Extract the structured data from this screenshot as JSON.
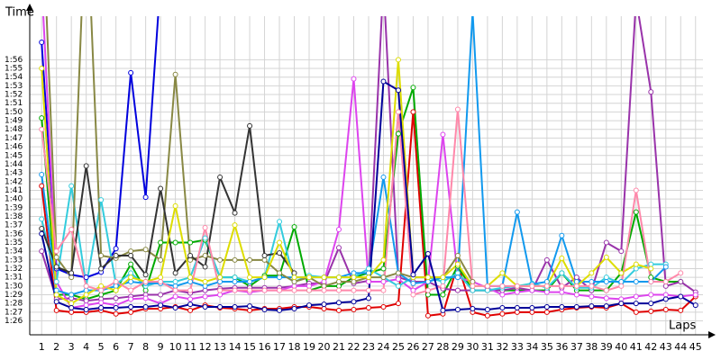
{
  "chart_data": {
    "type": "line",
    "y_label": "Time",
    "x_label": "Laps",
    "grid": true,
    "x": [
      1,
      2,
      3,
      4,
      5,
      6,
      7,
      8,
      9,
      10,
      11,
      12,
      13,
      14,
      15,
      16,
      17,
      18,
      19,
      20,
      21,
      22,
      23,
      24,
      25,
      26,
      27,
      28,
      29,
      30,
      31,
      32,
      33,
      34,
      35,
      36,
      37,
      38,
      39,
      40,
      41,
      42,
      43,
      44,
      45
    ],
    "xlim": [
      0.2,
      45.5
    ],
    "xticks": [
      1,
      2,
      3,
      4,
      5,
      6,
      7,
      8,
      9,
      10,
      11,
      12,
      13,
      14,
      15,
      16,
      17,
      18,
      19,
      20,
      21,
      22,
      23,
      24,
      25,
      26,
      27,
      28,
      29,
      30,
      31,
      32,
      33,
      34,
      35,
      36,
      37,
      38,
      39,
      40,
      41,
      42,
      43,
      44,
      45
    ],
    "ylim": [
      84.4,
      121
    ],
    "yticks": [
      {
        "value": 86,
        "label": "1:26"
      },
      {
        "value": 87,
        "label": "1:27"
      },
      {
        "value": 88,
        "label": "1:28"
      },
      {
        "value": 89,
        "label": "1:29"
      },
      {
        "value": 90,
        "label": "1:30"
      },
      {
        "value": 91,
        "label": "1:31"
      },
      {
        "value": 92,
        "label": "1:32"
      },
      {
        "value": 93,
        "label": "1:33"
      },
      {
        "value": 94,
        "label": "1:34"
      },
      {
        "value": 95,
        "label": "1:35"
      },
      {
        "value": 96,
        "label": "1:36"
      },
      {
        "value": 97,
        "label": "1:37"
      },
      {
        "value": 98,
        "label": "1:38"
      },
      {
        "value": 99,
        "label": "1:39"
      },
      {
        "value": 100,
        "label": "1:40"
      },
      {
        "value": 101,
        "label": "1:41"
      },
      {
        "value": 102,
        "label": "1:42"
      },
      {
        "value": 103,
        "label": "1:43"
      },
      {
        "value": 104,
        "label": "1:44"
      },
      {
        "value": 105,
        "label": "1:45"
      },
      {
        "value": 106,
        "label": "1:46"
      },
      {
        "value": 107,
        "label": "1:47"
      },
      {
        "value": 108,
        "label": "1:48"
      },
      {
        "value": 109,
        "label": "1:49"
      },
      {
        "value": 110,
        "label": "1:50"
      },
      {
        "value": 111,
        "label": "1:51"
      },
      {
        "value": 112,
        "label": "1:52"
      },
      {
        "value": 113,
        "label": "1:53"
      },
      {
        "value": 114,
        "label": "1:54"
      },
      {
        "value": 115,
        "label": "1:55"
      },
      {
        "value": 116,
        "label": "1:56"
      }
    ],
    "series": [
      {
        "color": "#e00000",
        "values": [
          101.5,
          87.2,
          87,
          87,
          87.2,
          86.8,
          87,
          87.4,
          87.4,
          87.6,
          87.2,
          87.8,
          87.5,
          87.4,
          87.2,
          87.4,
          87.4,
          87.6,
          87.6,
          87.4,
          87.2,
          87.3,
          87.5,
          87.6,
          88,
          110,
          86.6,
          86.8,
          92.5,
          87,
          86.6,
          86.8,
          87,
          87,
          87,
          87.3,
          87.5,
          87.6,
          87.5,
          88,
          87,
          87.1,
          87.3,
          87.2,
          88.8
        ]
      },
      {
        "color": "#0000dd",
        "values": [
          118,
          92,
          91.3,
          91,
          91.6,
          94.3,
          114.5,
          100.2,
          125,
          null,
          null,
          null,
          null,
          null,
          null,
          null,
          null,
          null,
          null,
          null,
          null,
          null,
          null,
          null,
          null,
          null,
          null,
          null,
          null,
          null,
          null,
          null,
          null,
          null,
          null,
          null,
          null,
          null,
          null,
          null,
          null,
          null,
          null,
          null,
          null
        ]
      },
      {
        "color": "#00aa00",
        "values": [
          109.3,
          89,
          89,
          88.5,
          89,
          89.5,
          92.5,
          89.5,
          95,
          95,
          95,
          95.3,
          91,
          91,
          90,
          91.2,
          91.2,
          96.8,
          89.5,
          90,
          90,
          91,
          91.5,
          92,
          107.5,
          112.8,
          89,
          89,
          92.3,
          89.5,
          89.5,
          89.5,
          89.5,
          89.5,
          89.5,
          91.5,
          89.5,
          89.5,
          89.5,
          91.5,
          98.5,
          91,
          90.5,
          90.5,
          null
        ]
      },
      {
        "color": "#9933aa",
        "values": [
          94,
          88.5,
          88.6,
          88.3,
          88.5,
          88.6,
          88.8,
          89,
          89,
          89.5,
          89.2,
          89.5,
          89.7,
          89.8,
          89.8,
          89.8,
          89.8,
          90,
          90.3,
          90.3,
          94.4,
          90.3,
          90.6,
          125,
          91,
          90.5,
          90.5,
          89.7,
          89.5,
          89.5,
          89.5,
          89.5,
          89.8,
          89.5,
          93,
          89.8,
          91,
          89.5,
          95,
          94,
          123,
          112.3,
          90,
          90.5,
          89.3
        ]
      },
      {
        "color": "#dd44ee",
        "values": [
          125,
          90.5,
          87.5,
          87.8,
          88.1,
          87.8,
          88.5,
          88.6,
          88,
          88.8,
          88.5,
          88.8,
          89,
          89.5,
          89.3,
          89.5,
          89.5,
          90,
          90,
          90.5,
          96.5,
          113.8,
          90.5,
          90.5,
          90.8,
          89.5,
          90.5,
          107.4,
          91,
          90.5,
          89.8,
          89,
          89.3,
          89.5,
          89.3,
          89.3,
          89,
          88.8,
          88.6,
          88.5,
          88.8,
          89,
          89,
          88.8,
          89
        ]
      },
      {
        "color": "#33ccdd",
        "values": [
          97.7,
          90.5,
          101.5,
          90,
          99.9,
          90.2,
          91.5,
          90,
          90.5,
          90.5,
          91,
          95.5,
          91,
          91,
          90.5,
          91,
          97.4,
          90.5,
          91.2,
          91,
          91,
          91,
          92,
          91,
          90,
          91,
          91,
          90.5,
          91.5,
          89.5,
          89.5,
          89.8,
          90,
          90.3,
          89.8,
          91.5,
          89.8,
          89.8,
          91,
          90.3,
          92,
          92.5,
          92.5,
          null,
          null
        ]
      },
      {
        "color": "#1199ee",
        "values": [
          102.8,
          89.5,
          89,
          89.5,
          89.5,
          90,
          90.5,
          90.3,
          90.3,
          90,
          90.5,
          90,
          90.5,
          90.5,
          90.5,
          91,
          91,
          91,
          91,
          91,
          91,
          91.5,
          91.5,
          102.5,
          91.5,
          90.3,
          90.5,
          91,
          91,
          121.5,
          90,
          90,
          98.5,
          90.2,
          90.5,
          95.8,
          90.5,
          90.5,
          90.5,
          90.5,
          90.5,
          90.5,
          92.2,
          null,
          null
        ]
      },
      {
        "color": "#888844",
        "values": [
          135,
          93.3,
          91,
          135,
          93.5,
          93.2,
          94,
          94.2,
          93,
          114.3,
          93,
          93.5,
          93,
          93,
          93,
          93,
          91.5,
          90.5,
          91,
          90,
          90.5,
          90.5,
          91,
          91,
          91.5,
          91,
          91,
          91,
          93.5,
          90.5,
          null,
          null,
          null,
          null,
          null,
          null,
          null,
          null,
          null,
          null,
          null,
          null,
          null,
          null,
          null
        ]
      },
      {
        "color": "#333333",
        "values": [
          96.6,
          92.2,
          91.5,
          103.8,
          92,
          93.5,
          93.5,
          91.3,
          101.2,
          91.5,
          93.5,
          92.2,
          102.5,
          98.4,
          108.4,
          93.5,
          93.8,
          91.5,
          null,
          null,
          null,
          null,
          null,
          null,
          null,
          null,
          null,
          null,
          null,
          null,
          null,
          null,
          null,
          null,
          null,
          null,
          null,
          null,
          null,
          null,
          null,
          null,
          null,
          null,
          null
        ]
      },
      {
        "color": "#dddd00",
        "values": [
          115,
          89,
          88,
          89,
          90,
          89.5,
          91,
          90.5,
          91,
          99.2,
          91,
          90.5,
          91,
          97,
          91,
          91,
          95,
          91,
          91,
          91,
          91,
          91,
          91,
          93,
          116,
          91,
          91,
          91,
          92.5,
          90,
          90,
          91.5,
          90,
          90,
          90,
          93.2,
          90,
          91.5,
          93.3,
          91.5,
          92.5,
          92,
          null,
          null,
          null
        ]
      },
      {
        "color": "#ff88aa",
        "values": [
          108,
          94,
          96.5,
          90,
          89.5,
          90.5,
          89.5,
          90.5,
          90.5,
          89.5,
          89.5,
          96.7,
          89.5,
          89.5,
          89.5,
          89.5,
          89.5,
          89.5,
          89.5,
          89.5,
          89.5,
          89.5,
          89.5,
          89.5,
          110,
          89,
          89.5,
          90,
          110.3,
          90,
          90,
          90,
          90,
          90,
          90,
          90,
          90,
          90,
          89.5,
          90,
          101,
          90.5,
          90.5,
          91.5,
          null
        ]
      },
      {
        "color": "#000099",
        "values": [
          96,
          88.2,
          87.5,
          87.3,
          87.5,
          87.5,
          87.6,
          87.6,
          87.8,
          87.5,
          87.9,
          87.6,
          87.6,
          87.6,
          87.7,
          87.3,
          87.2,
          87.4,
          87.8,
          87.9,
          88.1,
          88.2,
          88.6,
          113.5,
          112.5,
          91.3,
          93.7,
          87.2,
          87.3,
          87.4,
          87.3,
          87.5,
          87.5,
          87.5,
          87.6,
          87.6,
          87.6,
          87.7,
          87.7,
          88,
          88,
          88,
          88.5,
          88.8,
          87.8
        ]
      }
    ]
  }
}
